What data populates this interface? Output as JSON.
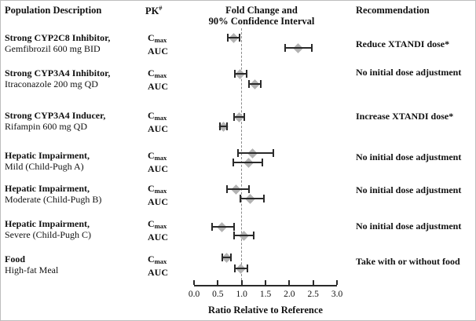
{
  "header": {
    "population": "Population Description",
    "pk_label": "PK",
    "pk_sup": "#",
    "fold_line1": "Fold Change and",
    "fold_line2": "90% Confidence Interval",
    "recommendation": "Recommendation"
  },
  "pk": {
    "c": "C",
    "max": "max",
    "auc": "AUC"
  },
  "rows": [
    {
      "line1": "Strong CYP2C8 Inhibitor,",
      "line2": "Gemfibrozil 600 mg BID",
      "recommendation": "Reduce XTANDI dose*"
    },
    {
      "line1": "Strong CYP3A4 Inhibitor,",
      "line2": "Itraconazole 200 mg QD",
      "recommendation": "No initial dose adjustment"
    },
    {
      "line1": "Strong CYP3A4 Inducer,",
      "line2": "Rifampin 600 mg QD",
      "recommendation": "Increase XTANDI dose*"
    },
    {
      "line1": "Hepatic Impairment,",
      "line2": "Mild (Child-Pugh A)",
      "recommendation": "No initial dose adjustment"
    },
    {
      "line1": "Hepatic Impairment,",
      "line2": "Moderate (Child-Pugh B)",
      "recommendation": "No initial dose adjustment"
    },
    {
      "line1": "Hepatic Impairment,",
      "line2": "Severe (Child-Pugh C)",
      "recommendation": "No initial dose adjustment"
    },
    {
      "line1": "Food",
      "line2": "High-fat Meal",
      "recommendation": "Take with or without food"
    }
  ],
  "chart_data": {
    "type": "scatter",
    "subtype": "forest-plot",
    "title": "Fold Change and 90% Confidence Interval",
    "xlabel": "Ratio Relative to Reference",
    "xlim": [
      0.0,
      3.0
    ],
    "xticks": [
      "0.0",
      "0.5",
      "1.0",
      "1.5",
      "2.0",
      "2.5",
      "3.0"
    ],
    "reference_x": 1.0,
    "grid": false,
    "legend": "none",
    "points": [
      {
        "group": "Strong CYP2C8 Inhibitor, Gemfibrozil 600 mg BID",
        "pk": "Cmax",
        "ratio": 0.84,
        "ci90_lo": 0.71,
        "ci90_hi": 0.96
      },
      {
        "group": "Strong CYP2C8 Inhibitor, Gemfibrozil 600 mg BID",
        "pk": "AUC",
        "ratio": 2.19,
        "ci90_lo": 1.92,
        "ci90_hi": 2.47
      },
      {
        "group": "Strong CYP3A4 Inhibitor, Itraconazole 200 mg QD",
        "pk": "Cmax",
        "ratio": 0.97,
        "ci90_lo": 0.85,
        "ci90_hi": 1.1
      },
      {
        "group": "Strong CYP3A4 Inhibitor, Itraconazole 200 mg QD",
        "pk": "AUC",
        "ratio": 1.27,
        "ci90_lo": 1.15,
        "ci90_hi": 1.4
      },
      {
        "group": "Strong CYP3A4 Inducer, Rifampin 600 mg QD",
        "pk": "Cmax",
        "ratio": 0.95,
        "ci90_lo": 0.84,
        "ci90_hi": 1.05
      },
      {
        "group": "Strong CYP3A4 Inducer, Rifampin 600 mg QD",
        "pk": "AUC",
        "ratio": 0.61,
        "ci90_lo": 0.55,
        "ci90_hi": 0.69
      },
      {
        "group": "Hepatic Impairment, Mild (Child-Pugh A)",
        "pk": "Cmax",
        "ratio": 1.23,
        "ci90_lo": 0.93,
        "ci90_hi": 1.66
      },
      {
        "group": "Hepatic Impairment, Mild (Child-Pugh A)",
        "pk": "AUC",
        "ratio": 1.14,
        "ci90_lo": 0.82,
        "ci90_hi": 1.44
      },
      {
        "group": "Hepatic Impairment, Moderate (Child-Pugh B)",
        "pk": "Cmax",
        "ratio": 0.89,
        "ci90_lo": 0.69,
        "ci90_hi": 1.16
      },
      {
        "group": "Hepatic Impairment, Moderate (Child-Pugh B)",
        "pk": "AUC",
        "ratio": 1.18,
        "ci90_lo": 0.98,
        "ci90_hi": 1.47
      },
      {
        "group": "Hepatic Impairment, Severe (Child-Pugh C)",
        "pk": "Cmax",
        "ratio": 0.59,
        "ci90_lo": 0.38,
        "ci90_hi": 0.84
      },
      {
        "group": "Hepatic Impairment, Severe (Child-Pugh C)",
        "pk": "AUC",
        "ratio": 1.04,
        "ci90_lo": 0.84,
        "ci90_hi": 1.25
      },
      {
        "group": "Food, High-fat Meal",
        "pk": "Cmax",
        "ratio": 0.68,
        "ci90_lo": 0.59,
        "ci90_hi": 0.78
      },
      {
        "group": "Food, High-fat Meal",
        "pk": "AUC",
        "ratio": 0.98,
        "ci90_lo": 0.85,
        "ci90_hi": 1.12
      }
    ],
    "colors": {
      "marker": "#b2b2b2",
      "line": "#2a2a2a",
      "reference": "#8a8a8a"
    }
  }
}
